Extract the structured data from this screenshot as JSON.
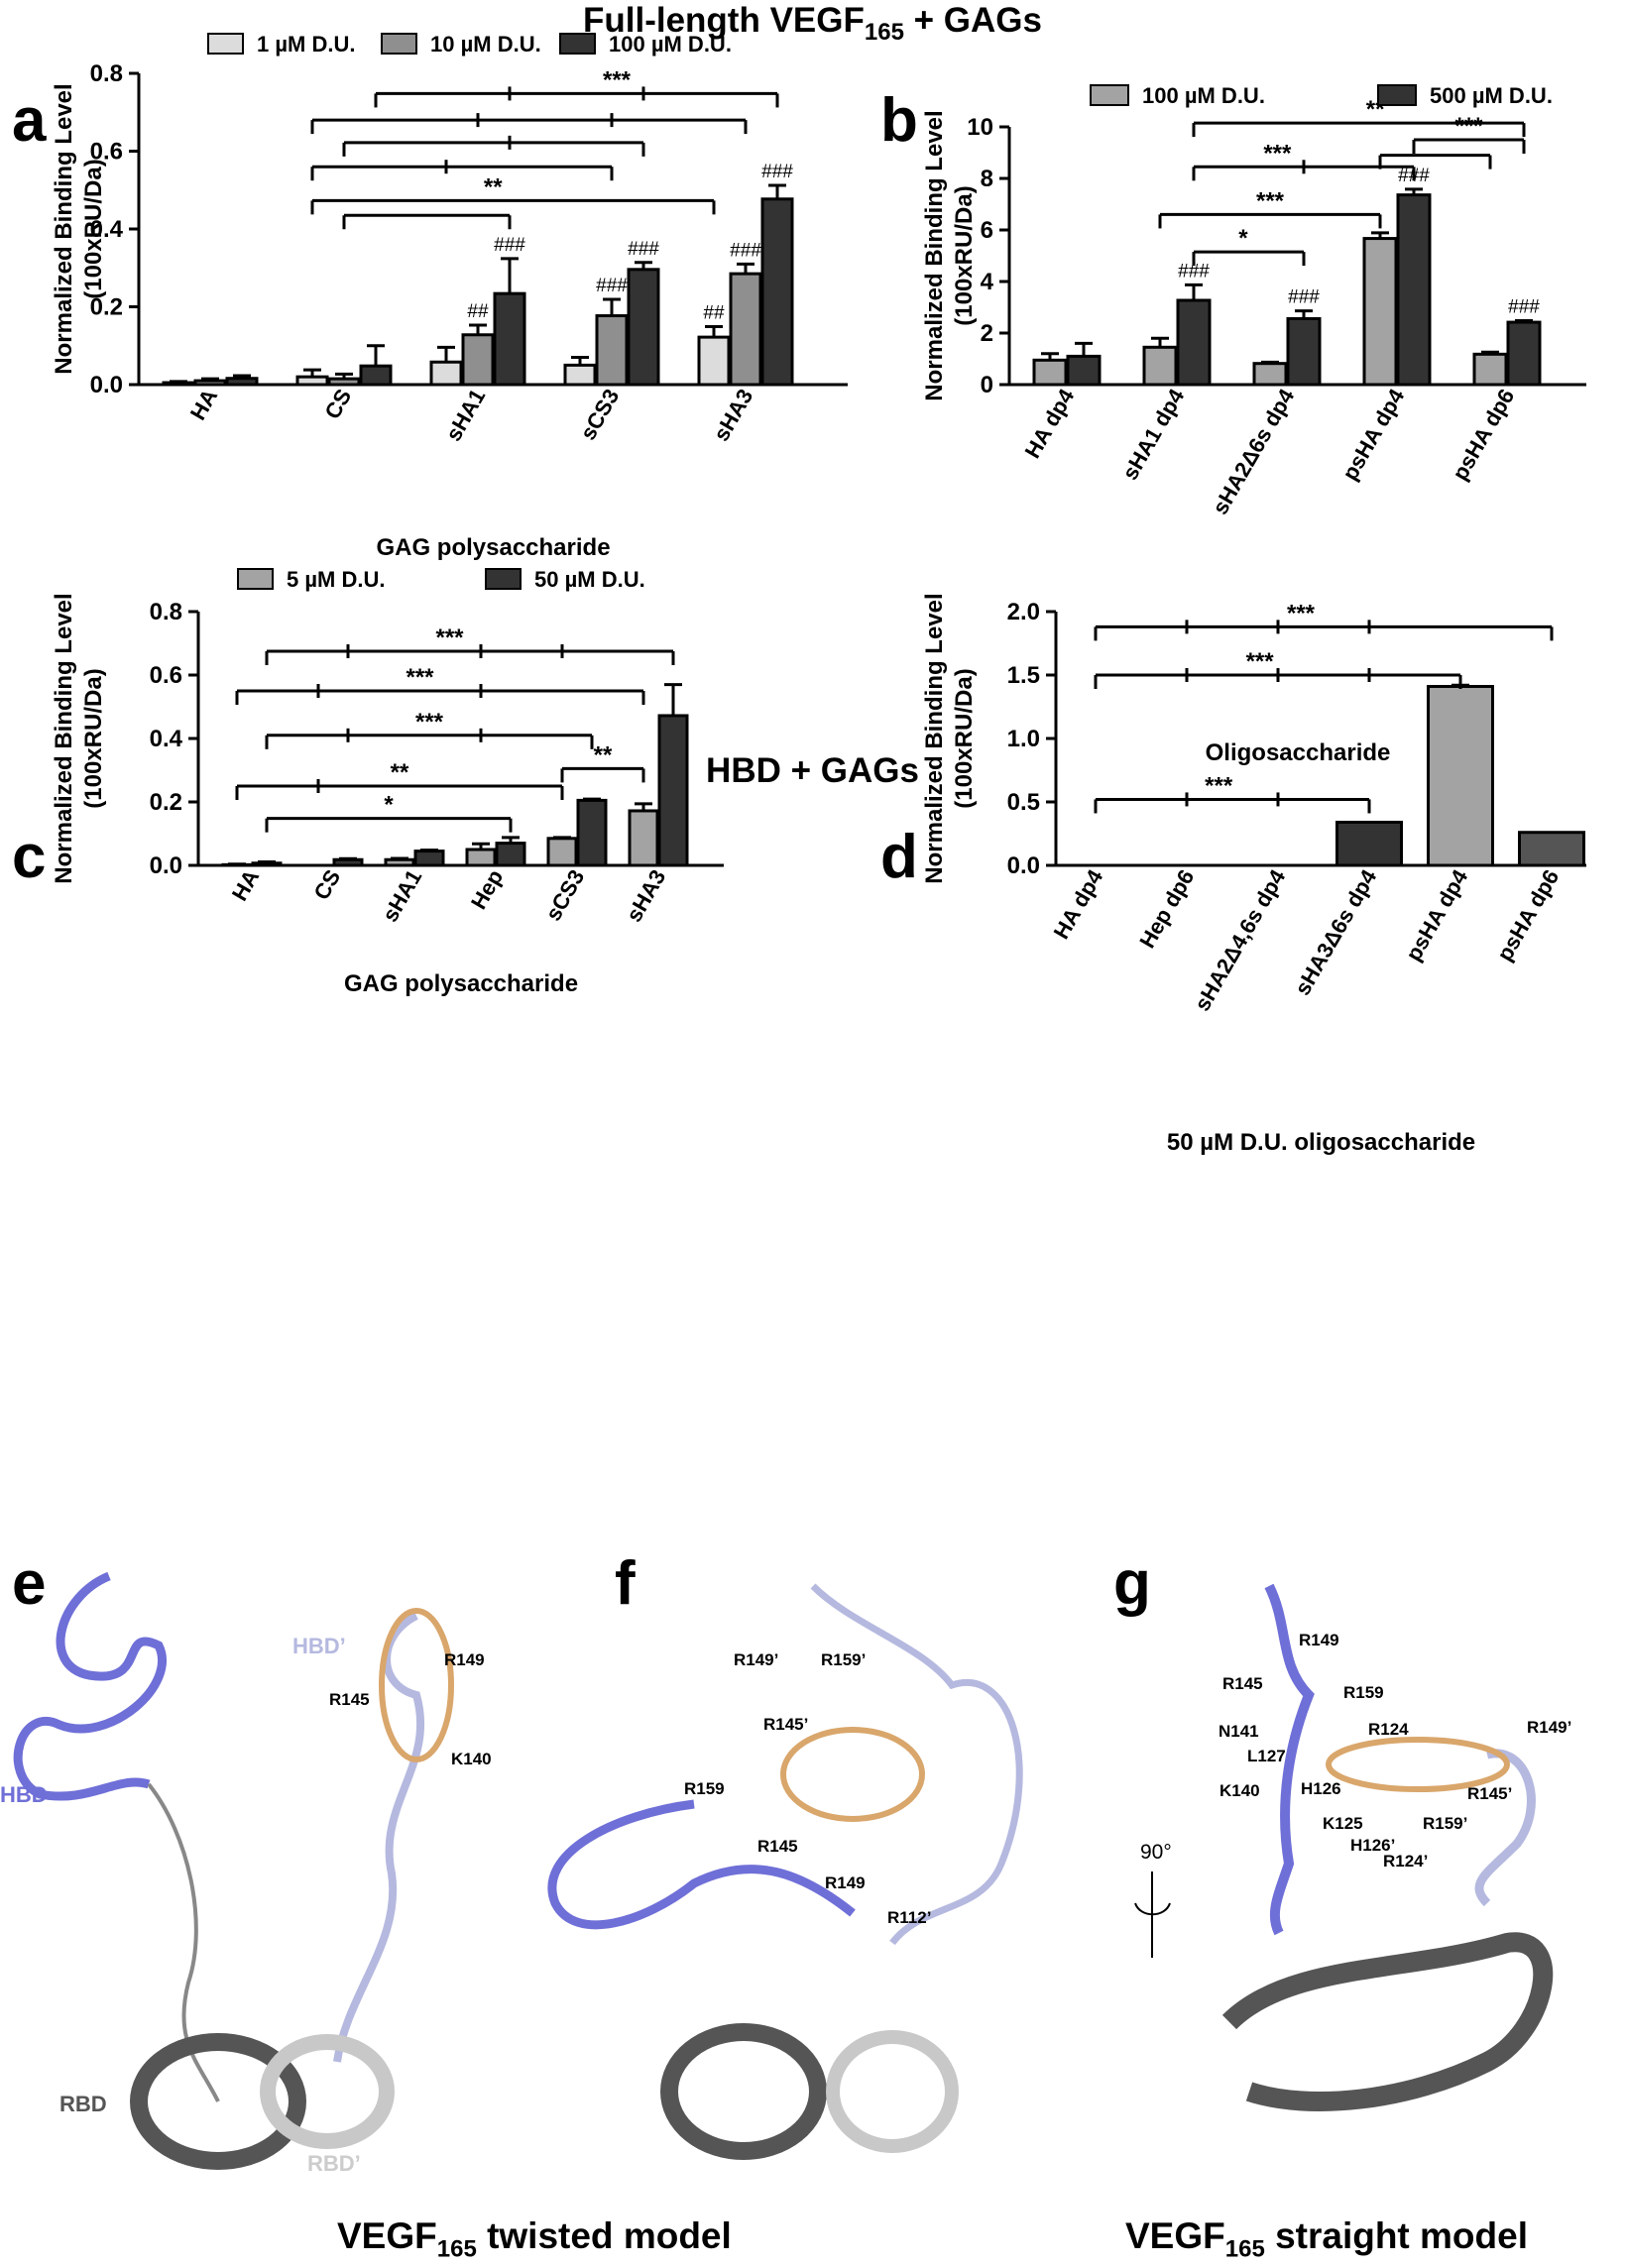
{
  "headings": {
    "top": {
      "pre": "Full-length VEGF",
      "sub": "165",
      "post": " + GAGs"
    },
    "mid": "HBD + GAGs",
    "twisted": {
      "pre": "VEGF",
      "sub": "165",
      "post": " twisted model"
    },
    "straight": {
      "pre": "VEGF",
      "sub": "165",
      "post": " straight model"
    }
  },
  "colors": {
    "light": "#dcdcdc",
    "mid": "#a3a3a3",
    "midgray": "#8f8f8f",
    "dark": "#333333",
    "protein_hbd": "#6f6fd8",
    "protein_hbd_prime": "#b5b9df",
    "protein_rbd": "#555555",
    "protein_rbd_prime": "#c8c8c8",
    "ligand": "#d9a66b"
  },
  "chart_data": [
    {
      "panel": "a",
      "type": "bar",
      "ylabel": "Normalized Binding Level",
      "ylabel2": "(100xRU/Da)",
      "xlabel": "GAG polysaccharide",
      "ylim": [
        0,
        0.8
      ],
      "yticks": [
        "0.0",
        "0.2",
        "0.4",
        "0.6",
        "0.8"
      ],
      "tick_values": [
        0,
        0.2,
        0.4,
        0.6,
        0.8
      ],
      "categories": [
        "HA",
        "CS",
        "sHA1",
        "sCS3",
        "sHA3"
      ],
      "series": [
        {
          "name": "1 µM D.U.",
          "color": "#dcdcdc",
          "values": [
            0.005,
            0.02,
            0.058,
            0.05,
            0.122
          ],
          "errors": [
            0.003,
            0.018,
            0.038,
            0.02,
            0.027
          ]
        },
        {
          "name": "10 µM D.U.",
          "color": "#8f8f8f",
          "values": [
            0.01,
            0.015,
            0.128,
            0.177,
            0.285
          ],
          "errors": [
            0.005,
            0.012,
            0.025,
            0.042,
            0.025
          ]
        },
        {
          "name": "100 µM D.U.",
          "color": "#333333",
          "values": [
            0.016,
            0.048,
            0.234,
            0.296,
            0.477
          ],
          "errors": [
            0.007,
            0.052,
            0.09,
            0.018,
            0.035
          ]
        }
      ],
      "bar_labels": [
        {
          "cat": 2,
          "series": 1,
          "text": "##"
        },
        {
          "cat": 2,
          "series": 2,
          "text": "###"
        },
        {
          "cat": 3,
          "series": 1,
          "text": "###"
        },
        {
          "cat": 3,
          "series": 2,
          "text": "###"
        },
        {
          "cat": 4,
          "series": 0,
          "text": "##"
        },
        {
          "cat": 4,
          "series": 1,
          "text": "###"
        },
        {
          "cat": 4,
          "series": 2,
          "text": "###"
        }
      ],
      "comparisons": [
        {
          "level": 0.748,
          "from": [
            1,
            2
          ],
          "to": [
            4,
            2
          ],
          "ticks": [
            [
              2,
              2
            ],
            [
              3,
              2
            ]
          ],
          "label": "***",
          "label_pos": 0.6
        },
        {
          "level": 0.68,
          "from": [
            1,
            0
          ],
          "to": [
            4,
            1
          ],
          "ticks": [
            [
              2,
              1
            ],
            [
              3,
              1
            ]
          ],
          "label": ""
        },
        {
          "level": 0.622,
          "from": [
            1,
            1
          ],
          "to": [
            3,
            2
          ],
          "ticks": [
            [
              2,
              2
            ]
          ],
          "label": ""
        },
        {
          "level": 0.56,
          "from": [
            1,
            0
          ],
          "to": [
            3,
            1
          ],
          "ticks": [
            [
              2,
              0
            ]
          ],
          "label": ""
        },
        {
          "level": 0.473,
          "from": [
            1,
            0
          ],
          "to": [
            4,
            0
          ],
          "ticks": [],
          "label": "**",
          "label_pos": 0.45
        },
        {
          "level": 0.435,
          "from": [
            1,
            1
          ],
          "to": [
            2,
            2
          ],
          "ticks": [],
          "label": ""
        }
      ]
    },
    {
      "panel": "b",
      "type": "bar",
      "ylabel": "Normalized Binding Level",
      "ylabel2": "(100xRU/Da)",
      "xlabel": "Oligosaccharide",
      "ylim": [
        0,
        10
      ],
      "yticks": [
        "0",
        "2",
        "4",
        "6",
        "8",
        "10"
      ],
      "tick_values": [
        0,
        2,
        4,
        6,
        8,
        10
      ],
      "categories": [
        "HA dp4",
        "sHA1 dp4",
        "sHA2Δ6s dp4",
        "psHA dp4",
        "psHA dp6"
      ],
      "series": [
        {
          "name": "100 µM D.U.",
          "color": "#a3a3a3",
          "values": [
            0.95,
            1.45,
            0.82,
            5.67,
            1.18
          ],
          "errors": [
            0.25,
            0.35,
            0.05,
            0.22,
            0.08
          ]
        },
        {
          "name": "500 µM D.U.",
          "color": "#333333",
          "values": [
            1.1,
            3.27,
            2.56,
            7.36,
            2.42
          ],
          "errors": [
            0.5,
            0.6,
            0.3,
            0.22,
            0.06
          ]
        }
      ],
      "bar_labels": [
        {
          "cat": 1,
          "series": 1,
          "text": "###"
        },
        {
          "cat": 2,
          "series": 1,
          "text": "###"
        },
        {
          "cat": 3,
          "series": 1,
          "text": "###"
        },
        {
          "cat": 4,
          "series": 1,
          "text": "###"
        }
      ],
      "comparisons": [
        {
          "level": 10.15,
          "from": [
            1,
            1
          ],
          "to": [
            4,
            1
          ],
          "ticks": [],
          "label": "**",
          "label_pos": 0.55
        },
        {
          "level": 9.5,
          "from": [
            3,
            1
          ],
          "to": [
            4,
            1
          ],
          "ticks": [],
          "label": "***",
          "label_pos": 0.5
        },
        {
          "level": 8.9,
          "from": [
            3,
            0
          ],
          "to": [
            4,
            0
          ],
          "ticks": [],
          "label": ""
        },
        {
          "level": 8.45,
          "from": [
            1,
            1
          ],
          "to": [
            3,
            1
          ],
          "ticks": [
            [
              2,
              1
            ]
          ],
          "label": "***",
          "label_pos": 0.38
        },
        {
          "level": 6.6,
          "from": [
            1,
            0
          ],
          "to": [
            3,
            0
          ],
          "ticks": [],
          "label": "***",
          "label_pos": 0.5
        },
        {
          "level": 5.15,
          "from": [
            1,
            1
          ],
          "to": [
            2,
            1
          ],
          "ticks": [],
          "label": "*",
          "label_pos": 0.45
        }
      ]
    },
    {
      "panel": "c",
      "type": "bar",
      "ylabel": "Normalized Binding Level",
      "ylabel2": "(100xRU/Da)",
      "xlabel": "GAG polysaccharide",
      "ylim": [
        0,
        0.8
      ],
      "yticks": [
        "0.0",
        "0.2",
        "0.4",
        "0.6",
        "0.8"
      ],
      "tick_values": [
        0,
        0.2,
        0.4,
        0.6,
        0.8
      ],
      "categories": [
        "HA",
        "CS",
        "sHA1",
        "Hep",
        "sCS3",
        "sHA3"
      ],
      "series": [
        {
          "name": "5 µM D.U.",
          "color": "#a3a3a3",
          "values": [
            0.002,
            0.0,
            0.018,
            0.05,
            0.085,
            0.172
          ],
          "errors": [
            0.002,
            0,
            0.004,
            0.018,
            0.003,
            0.022
          ]
        },
        {
          "name": "50 µM D.U.",
          "color": "#333333",
          "values": [
            0.007,
            0.018,
            0.045,
            0.07,
            0.205,
            0.472
          ],
          "errors": [
            0.004,
            0.003,
            0.003,
            0.018,
            0.004,
            0.098
          ]
        }
      ],
      "bar_labels": [],
      "comparisons": [
        {
          "level": 0.675,
          "from": [
            0,
            1
          ],
          "to": [
            5,
            1
          ],
          "ticks": [
            [
              1,
              1
            ],
            [
              3,
              0
            ],
            [
              4,
              0
            ]
          ],
          "label": "***",
          "label_pos": 0.45
        },
        {
          "level": 0.55,
          "from": [
            0,
            0
          ],
          "to": [
            5,
            0
          ],
          "ticks": [
            [
              1,
              0
            ],
            [
              3,
              0
            ]
          ],
          "label": "***",
          "label_pos": 0.45
        },
        {
          "level": 0.41,
          "from": [
            0,
            1
          ],
          "to": [
            4,
            1
          ],
          "ticks": [
            [
              1,
              1
            ],
            [
              3,
              0
            ]
          ],
          "label": "***",
          "label_pos": 0.5
        },
        {
          "level": 0.25,
          "from": [
            0,
            0
          ],
          "to": [
            4,
            0
          ],
          "ticks": [
            [
              1,
              0
            ]
          ],
          "label": "**",
          "label_pos": 0.5
        },
        {
          "level": 0.305,
          "from": [
            4,
            0
          ],
          "to": [
            5,
            0
          ],
          "ticks": [],
          "label": "**",
          "label_pos": 0.5
        },
        {
          "level": 0.148,
          "from": [
            0,
            1
          ],
          "to": [
            3,
            1
          ],
          "ticks": [],
          "label": "*",
          "label_pos": 0.5
        }
      ]
    },
    {
      "panel": "d",
      "type": "bar",
      "ylabel": "Normalized Binding Level",
      "ylabel2": "(100xRU/Da)",
      "xlabel": "50 µM D.U. oligosaccharide",
      "ylim": [
        0,
        2.0
      ],
      "yticks": [
        "0.0",
        "0.5",
        "1.0",
        "1.5",
        "2.0"
      ],
      "tick_values": [
        0,
        0.5,
        1,
        1.5,
        2
      ],
      "categories": [
        "HA dp4",
        "Hep dp6",
        "sHA2Δ4,6s dp4",
        "sHA3Δ6s dp4",
        "psHA dp4",
        "psHA dp6"
      ],
      "series": [
        {
          "name": "",
          "colors": [
            "#333333",
            "#333333",
            "#333333",
            "#333333",
            "#a3a3a3",
            "#555555"
          ],
          "values": [
            0.0,
            0.0,
            0.0,
            0.34,
            1.41,
            0.26
          ],
          "errors": [
            0,
            0,
            0,
            0,
            0.01,
            0
          ]
        }
      ],
      "bar_labels": [],
      "comparisons": [
        {
          "level": 1.88,
          "from": [
            0,
            0
          ],
          "to": [
            5,
            0
          ],
          "ticks": [
            [
              1,
              0
            ],
            [
              2,
              0
            ],
            [
              3,
              0
            ]
          ],
          "label": "***",
          "label_pos": 0.45
        },
        {
          "level": 1.5,
          "from": [
            0,
            0
          ],
          "to": [
            4,
            0
          ],
          "ticks": [
            [
              1,
              0
            ],
            [
              2,
              0
            ],
            [
              3,
              0
            ]
          ],
          "label": "***",
          "label_pos": 0.45
        },
        {
          "level": 0.52,
          "from": [
            0,
            0
          ],
          "to": [
            3,
            0
          ],
          "ticks": [
            [
              1,
              0
            ],
            [
              2,
              0
            ]
          ],
          "label": "***",
          "label_pos": 0.45
        }
      ]
    }
  ],
  "panel_letters": [
    "a",
    "b",
    "c",
    "d",
    "e",
    "f",
    "g"
  ],
  "structures": {
    "e": {
      "labels": [
        "HBD",
        "HBD’",
        "RBD",
        "RBD’",
        "R149",
        "R145",
        "K140"
      ]
    },
    "f": {
      "labels": [
        "R149’",
        "R159’",
        "R145’",
        "R159",
        "R145",
        "R149",
        "R112’"
      ]
    },
    "g": {
      "labels": [
        "R149",
        "R145",
        "R159",
        "N141",
        "R124",
        "R149’",
        "L127",
        "K140",
        "H126",
        "R145’",
        "K125",
        "R159’",
        "H126’",
        "R124’",
        "90°"
      ]
    }
  }
}
